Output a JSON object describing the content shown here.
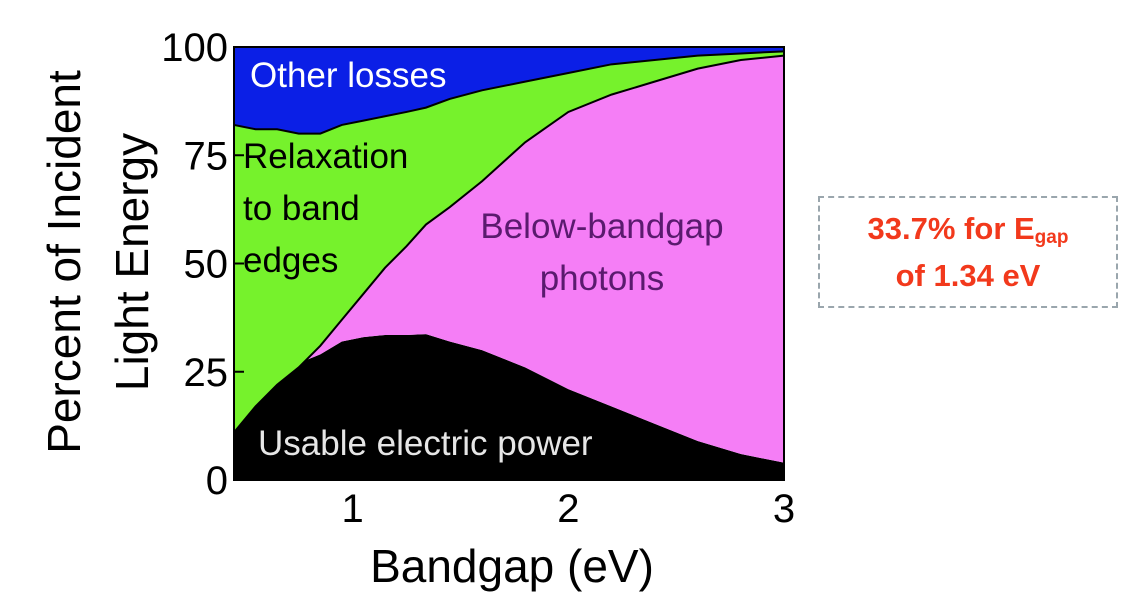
{
  "chart_data": {
    "type": "area",
    "xlabel": "Bandgap (eV)",
    "ylabel_line1": "Percent of Incident",
    "ylabel_line2": "Light Energy",
    "xlim": [
      0.45,
      3.0
    ],
    "ylim": [
      0,
      100
    ],
    "x_ticks": [
      1,
      2,
      3
    ],
    "y_ticks": [
      0,
      25,
      50,
      75,
      100
    ],
    "x_tick_labels": [
      "1",
      "2",
      "3"
    ],
    "y_tick_labels": [
      "0",
      "25",
      "50",
      "75",
      "100"
    ],
    "grid": false,
    "x": [
      0.45,
      0.55,
      0.65,
      0.75,
      0.85,
      0.95,
      1.05,
      1.15,
      1.25,
      1.34,
      1.45,
      1.6,
      1.8,
      2.0,
      2.2,
      2.4,
      2.6,
      2.8,
      3.0
    ],
    "series": [
      {
        "region": "usable_power",
        "label": "Usable electric power",
        "upper": [
          11,
          17,
          23,
          27,
          29,
          32,
          33,
          33.5,
          33.5,
          33.7,
          32,
          30,
          26,
          21,
          17,
          13,
          9,
          6,
          4
        ],
        "color": "#000000"
      },
      {
        "region": "below_bandgap",
        "label_line1": "Below-bandgap",
        "label_line2": "photons",
        "upper": [
          11,
          17,
          22,
          26,
          31,
          37,
          43,
          49,
          54,
          59,
          63,
          69,
          78,
          85,
          89,
          92,
          95,
          97,
          98
        ],
        "color": "#f57ef6"
      },
      {
        "region": "relaxation",
        "label_line1": "Relaxation",
        "label_line2": "to band",
        "label_line3": "edges",
        "upper": [
          82,
          81,
          81,
          80,
          80,
          82,
          83,
          84,
          85,
          86,
          88,
          90,
          92,
          94,
          96,
          97,
          98,
          98.5,
          99
        ],
        "color": "#76f22c"
      },
      {
        "region": "other_losses",
        "label": "Other losses",
        "upper": [
          100,
          100,
          100,
          100,
          100,
          100,
          100,
          100,
          100,
          100,
          100,
          100,
          100,
          100,
          100,
          100,
          100,
          100,
          100
        ],
        "color": "#0b1fe6"
      }
    ],
    "annotation": {
      "line1_prefix": "33.7% for E",
      "line1_sub": "gap",
      "line2": "of 1.34 eV",
      "color": "#f2391c"
    }
  }
}
